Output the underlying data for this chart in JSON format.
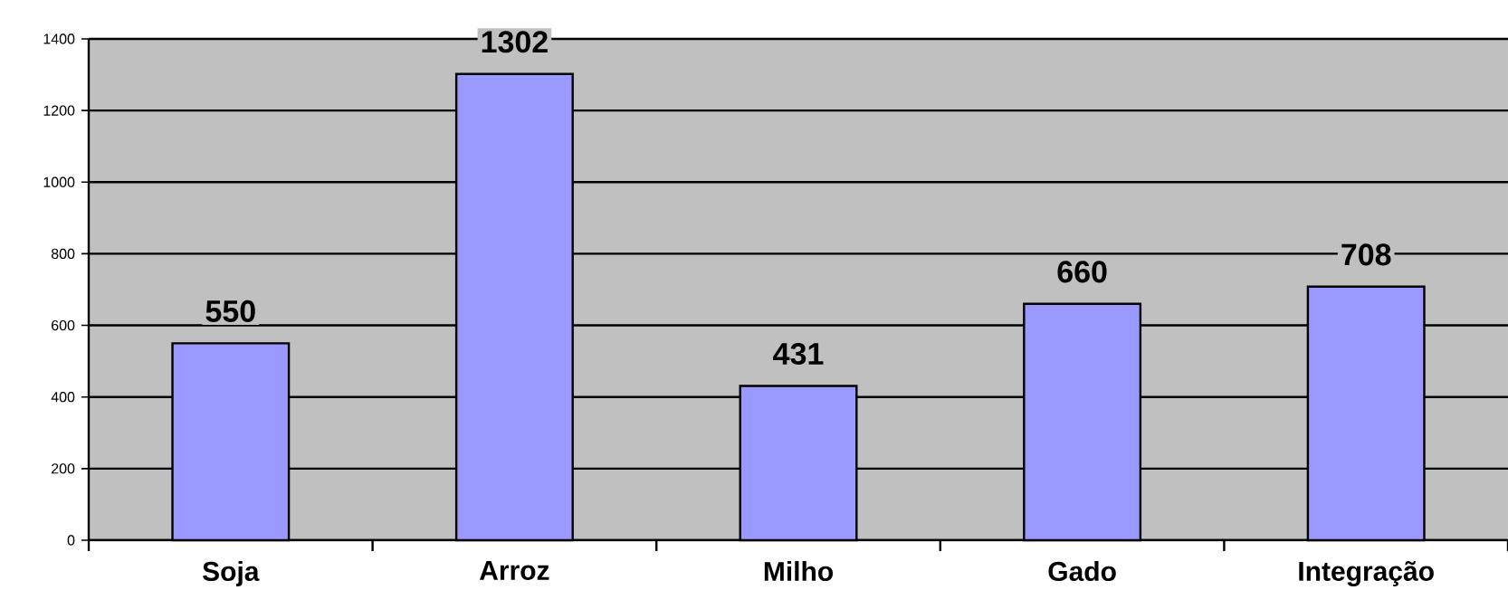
{
  "chart_data": {
    "type": "bar",
    "categories": [
      "Soja",
      "Arroz",
      "Milho",
      "Gado",
      "Integração"
    ],
    "values": [
      550,
      1302,
      431,
      660,
      708
    ],
    "color": "#9999ff",
    "ylim": [
      0,
      1400
    ],
    "yticks": [
      0,
      200,
      400,
      600,
      800,
      1000,
      1200,
      1400
    ],
    "grid": "y",
    "data_labels": true
  }
}
